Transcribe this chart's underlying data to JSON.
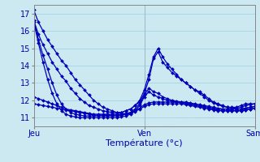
{
  "xlabel": "Température (°c)",
  "background_color": "#cce8f0",
  "grid_color": "#9ecfdf",
  "line_color": "#0000bb",
  "marker": "D",
  "markersize": 2.0,
  "linewidth": 0.9,
  "xlim": [
    0,
    48
  ],
  "ylim": [
    10.5,
    17.5
  ],
  "yticks": [
    11,
    12,
    13,
    14,
    15,
    16,
    17
  ],
  "xtick_positions": [
    0,
    24,
    48
  ],
  "xtick_labels": [
    "Jeu",
    "Ven",
    "Sam"
  ],
  "series": [
    [
      17.2,
      16.5,
      16.0,
      15.5,
      15.1,
      14.7,
      14.3,
      14.0,
      13.6,
      13.2,
      12.9,
      12.6,
      12.3,
      12.0,
      11.8,
      11.6,
      11.5,
      11.4,
      11.3,
      11.3,
      11.4,
      11.5,
      11.7,
      11.9,
      12.4,
      13.2,
      14.4,
      14.8,
      14.2,
      13.9,
      13.6,
      13.4,
      13.2,
      13.0,
      12.8,
      12.6,
      12.5,
      12.3,
      12.1,
      11.9,
      11.8,
      11.7,
      11.6,
      11.6,
      11.6,
      11.7,
      11.8,
      11.8,
      11.8
    ],
    [
      16.6,
      15.8,
      15.2,
      14.7,
      14.2,
      13.8,
      13.4,
      13.1,
      12.7,
      12.4,
      12.1,
      11.9,
      11.7,
      11.6,
      11.5,
      11.4,
      11.35,
      11.3,
      11.3,
      11.3,
      11.4,
      11.5,
      11.7,
      12.0,
      12.6,
      13.5,
      14.5,
      15.0,
      14.5,
      14.1,
      13.8,
      13.5,
      13.2,
      13.0,
      12.8,
      12.6,
      12.4,
      12.2,
      12.0,
      11.85,
      11.75,
      11.65,
      11.6,
      11.55,
      11.55,
      11.6,
      11.7,
      11.75,
      11.8
    ],
    [
      16.6,
      15.5,
      14.6,
      13.8,
      13.0,
      12.3,
      11.8,
      11.5,
      11.3,
      11.2,
      11.15,
      11.1,
      11.1,
      11.1,
      11.1,
      11.1,
      11.1,
      11.1,
      11.1,
      11.15,
      11.2,
      11.3,
      11.5,
      11.8,
      12.3,
      12.7,
      12.5,
      12.4,
      12.2,
      12.1,
      12.0,
      11.95,
      11.9,
      11.85,
      11.8,
      11.75,
      11.7,
      11.65,
      11.6,
      11.55,
      11.5,
      11.5,
      11.5,
      11.5,
      11.5,
      11.5,
      11.55,
      11.6,
      11.65
    ],
    [
      16.5,
      15.3,
      14.2,
      13.2,
      12.4,
      11.8,
      11.4,
      11.2,
      11.1,
      11.05,
      11.0,
      11.0,
      11.0,
      11.0,
      11.0,
      11.0,
      11.0,
      11.0,
      11.0,
      11.05,
      11.1,
      11.2,
      11.4,
      11.7,
      12.2,
      12.5,
      12.3,
      12.2,
      12.1,
      12.0,
      11.95,
      11.9,
      11.85,
      11.8,
      11.75,
      11.7,
      11.65,
      11.6,
      11.55,
      11.5,
      11.45,
      11.4,
      11.4,
      11.4,
      11.4,
      11.4,
      11.45,
      11.5,
      11.55
    ],
    [
      12.2,
      12.1,
      12.0,
      11.9,
      11.8,
      11.7,
      11.6,
      11.5,
      11.45,
      11.4,
      11.35,
      11.3,
      11.25,
      11.2,
      11.2,
      11.2,
      11.2,
      11.2,
      11.2,
      11.2,
      11.25,
      11.3,
      11.4,
      11.55,
      11.75,
      11.85,
      11.9,
      11.9,
      11.9,
      11.9,
      11.9,
      11.9,
      11.9,
      11.9,
      11.85,
      11.8,
      11.75,
      11.7,
      11.65,
      11.6,
      11.55,
      11.5,
      11.5,
      11.5,
      11.5,
      11.5,
      11.55,
      11.6,
      11.65
    ],
    [
      11.8,
      11.75,
      11.7,
      11.65,
      11.6,
      11.55,
      11.5,
      11.45,
      11.4,
      11.35,
      11.3,
      11.25,
      11.2,
      11.15,
      11.15,
      11.15,
      11.15,
      11.15,
      11.15,
      11.15,
      11.2,
      11.25,
      11.35,
      11.5,
      11.65,
      11.75,
      11.8,
      11.8,
      11.8,
      11.8,
      11.8,
      11.8,
      11.8,
      11.75,
      11.7,
      11.65,
      11.6,
      11.55,
      11.5,
      11.45,
      11.4,
      11.4,
      11.4,
      11.4,
      11.4,
      11.4,
      11.45,
      11.5,
      11.55
    ]
  ]
}
